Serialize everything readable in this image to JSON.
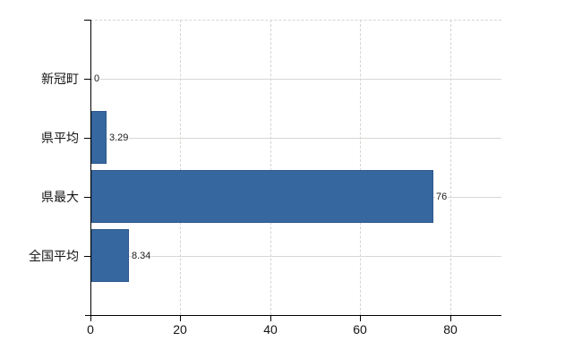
{
  "chart_data": {
    "type": "bar",
    "orientation": "horizontal",
    "title": "",
    "xlabel": "",
    "ylabel": "",
    "categories": [
      "新冠町",
      "県平均",
      "県最大",
      "全国平均"
    ],
    "values": [
      0,
      3.29,
      76,
      8.34
    ],
    "value_labels": [
      "0",
      "3.29",
      "76",
      "8.34"
    ],
    "x_ticks": [
      0,
      20,
      40,
      60,
      80
    ],
    "x_tick_labels": [
      "0",
      "20",
      "40",
      "60",
      "80"
    ],
    "xlim": [
      0,
      91.4
    ],
    "grid": "on",
    "legend_position": "none",
    "colors": {
      "bar_fill": "#36689F",
      "bar_border": "#2D578C",
      "gridline": "#d5d8d3",
      "axis": "#000000",
      "text": "#141414",
      "background": "#ffffff"
    }
  }
}
